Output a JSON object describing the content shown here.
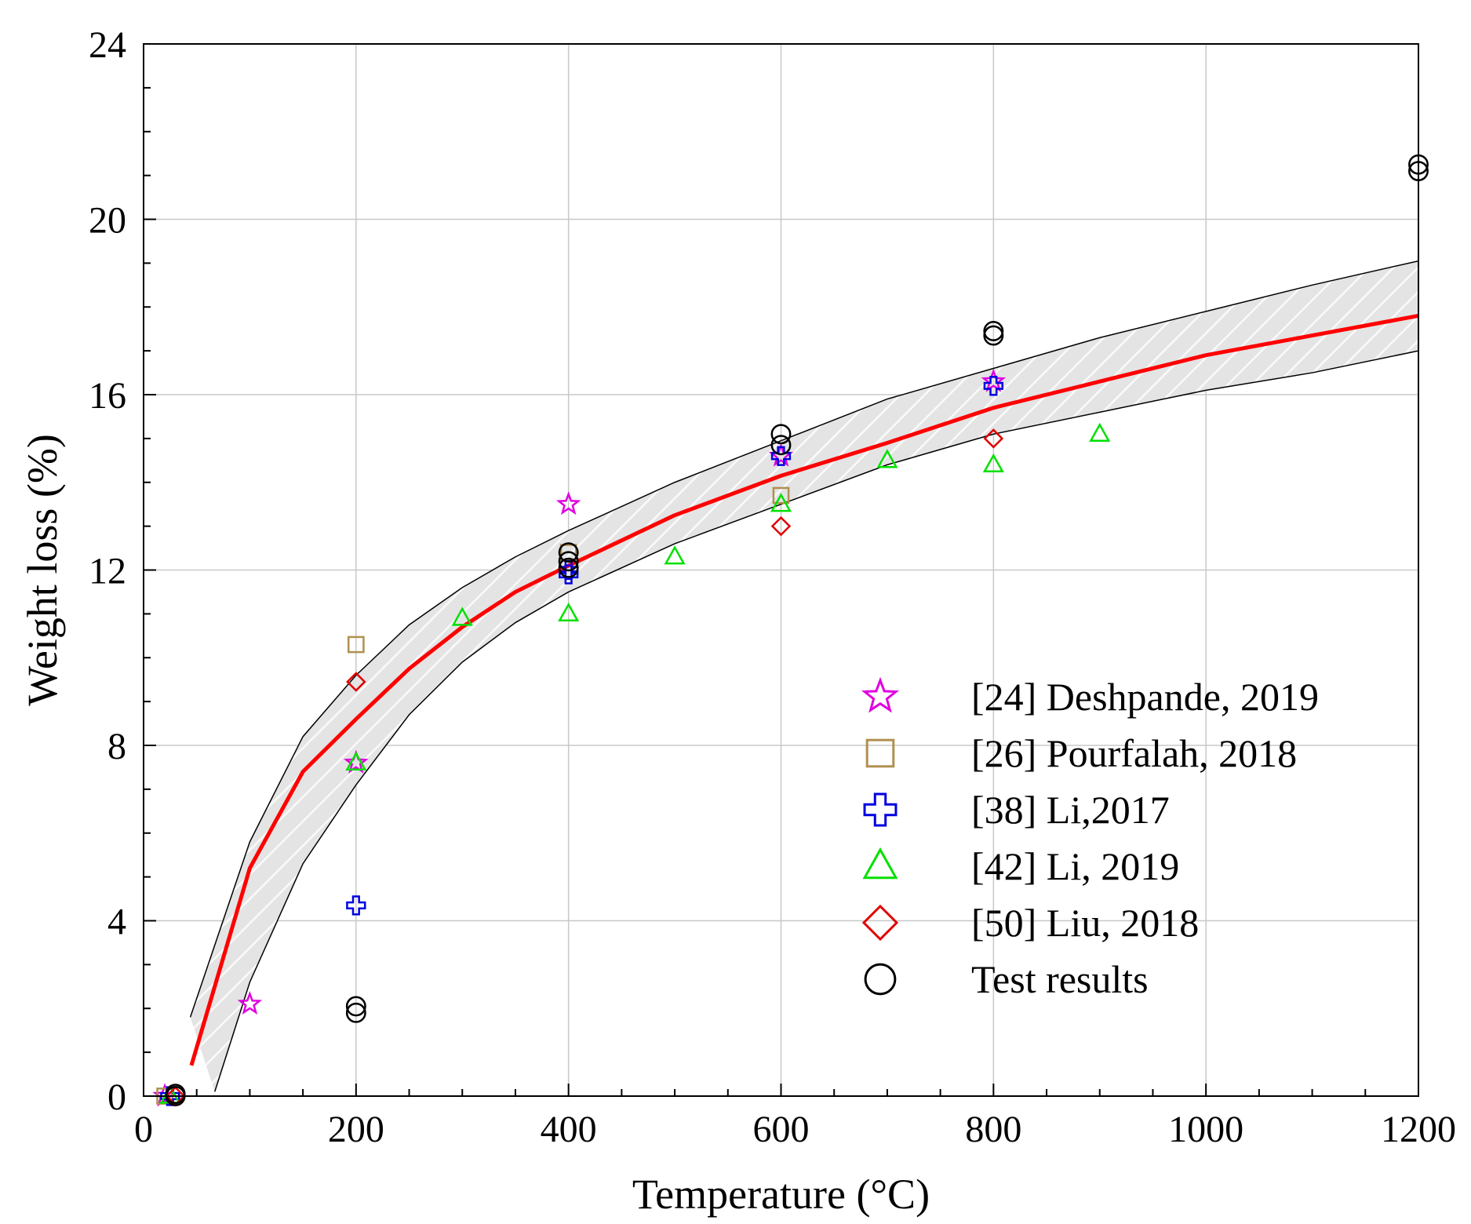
{
  "chart_data": {
    "type": "scatter",
    "xlabel": "Temperature (°C)",
    "ylabel": "Weight loss (%)",
    "xlim": [
      0,
      1200
    ],
    "ylim": [
      0,
      24
    ],
    "x_ticks": [
      0,
      200,
      400,
      600,
      800,
      1000,
      1200
    ],
    "x_tick_labels": [
      "0",
      "200",
      "400",
      "600",
      "800",
      "1000",
      "1200"
    ],
    "y_ticks": [
      0,
      4,
      8,
      12,
      16,
      20,
      24
    ],
    "y_tick_labels": [
      "0",
      "4",
      "8",
      "12",
      "16",
      "20",
      "24"
    ],
    "grid": true,
    "legend_position": "bottom-right",
    "series": [
      {
        "name": "[24] Deshpande, 2019",
        "marker": "star",
        "color": "#e000e0",
        "points": [
          [
            20,
            0
          ],
          [
            100,
            2.1
          ],
          [
            200,
            7.6
          ],
          [
            400,
            13.5
          ],
          [
            600,
            14.6
          ],
          [
            800,
            16.3
          ]
        ]
      },
      {
        "name": "[26] Pourfalah, 2018",
        "marker": "square",
        "color": "#b09050",
        "points": [
          [
            20,
            0
          ],
          [
            200,
            10.3
          ],
          [
            400,
            12.4
          ],
          [
            600,
            13.7
          ]
        ]
      },
      {
        "name": "[38] Li,2017",
        "marker": "plus",
        "color": "#0000e0",
        "points": [
          [
            25,
            0
          ],
          [
            200,
            4.35
          ],
          [
            400,
            12.0
          ],
          [
            400,
            11.9
          ],
          [
            600,
            14.6
          ],
          [
            800,
            16.2
          ]
        ]
      },
      {
        "name": "[42] Li, 2019",
        "marker": "triangle",
        "color": "#00e000",
        "points": [
          [
            25,
            0
          ],
          [
            200,
            7.6
          ],
          [
            300,
            10.9
          ],
          [
            400,
            11.0
          ],
          [
            500,
            12.3
          ],
          [
            600,
            13.5
          ],
          [
            700,
            14.5
          ],
          [
            800,
            14.4
          ],
          [
            900,
            15.1
          ]
        ]
      },
      {
        "name": "[50] Liu, 2018",
        "marker": "diamond",
        "color": "#e00000",
        "points": [
          [
            30,
            0
          ],
          [
            200,
            9.45
          ],
          [
            600,
            13.0
          ],
          [
            800,
            15.0
          ]
        ]
      },
      {
        "name": "Test results",
        "marker": "circle",
        "color": "#000000",
        "points": [
          [
            30,
            0
          ],
          [
            30,
            0.05
          ],
          [
            200,
            2.05
          ],
          [
            200,
            1.9
          ],
          [
            400,
            12.4
          ],
          [
            400,
            12.2
          ],
          [
            400,
            12.05
          ],
          [
            600,
            15.1
          ],
          [
            600,
            14.85
          ],
          [
            800,
            17.45
          ],
          [
            800,
            17.35
          ],
          [
            1200,
            21.25
          ],
          [
            1200,
            21.1
          ]
        ]
      }
    ],
    "fit_curve": {
      "color": "#ff0000",
      "points": [
        [
          45,
          0.7
        ],
        [
          100,
          5.2
        ],
        [
          150,
          7.4
        ],
        [
          200,
          8.6
        ],
        [
          250,
          9.75
        ],
        [
          300,
          10.7
        ],
        [
          350,
          11.5
        ],
        [
          400,
          12.1
        ],
        [
          500,
          13.25
        ],
        [
          600,
          14.15
        ],
        [
          700,
          14.9
        ],
        [
          800,
          15.7
        ],
        [
          900,
          16.3
        ],
        [
          1000,
          16.9
        ],
        [
          1100,
          17.35
        ],
        [
          1200,
          17.8
        ]
      ]
    },
    "band_upper": [
      [
        44,
        1.8
      ],
      [
        100,
        5.8
      ],
      [
        150,
        8.2
      ],
      [
        200,
        9.6
      ],
      [
        250,
        10.75
      ],
      [
        300,
        11.6
      ],
      [
        350,
        12.3
      ],
      [
        400,
        12.9
      ],
      [
        500,
        14.0
      ],
      [
        600,
        14.95
      ],
      [
        700,
        15.9
      ],
      [
        800,
        16.6
      ],
      [
        900,
        17.3
      ],
      [
        1000,
        17.9
      ],
      [
        1100,
        18.5
      ],
      [
        1200,
        19.05
      ]
    ],
    "band_lower": [
      [
        67,
        0.1
      ],
      [
        100,
        2.6
      ],
      [
        150,
        5.3
      ],
      [
        200,
        7.1
      ],
      [
        250,
        8.7
      ],
      [
        300,
        9.9
      ],
      [
        350,
        10.8
      ],
      [
        400,
        11.5
      ],
      [
        500,
        12.6
      ],
      [
        600,
        13.5
      ],
      [
        700,
        14.4
      ],
      [
        800,
        15.1
      ],
      [
        900,
        15.6
      ],
      [
        1000,
        16.1
      ],
      [
        1100,
        16.5
      ],
      [
        1200,
        17.0
      ]
    ]
  }
}
